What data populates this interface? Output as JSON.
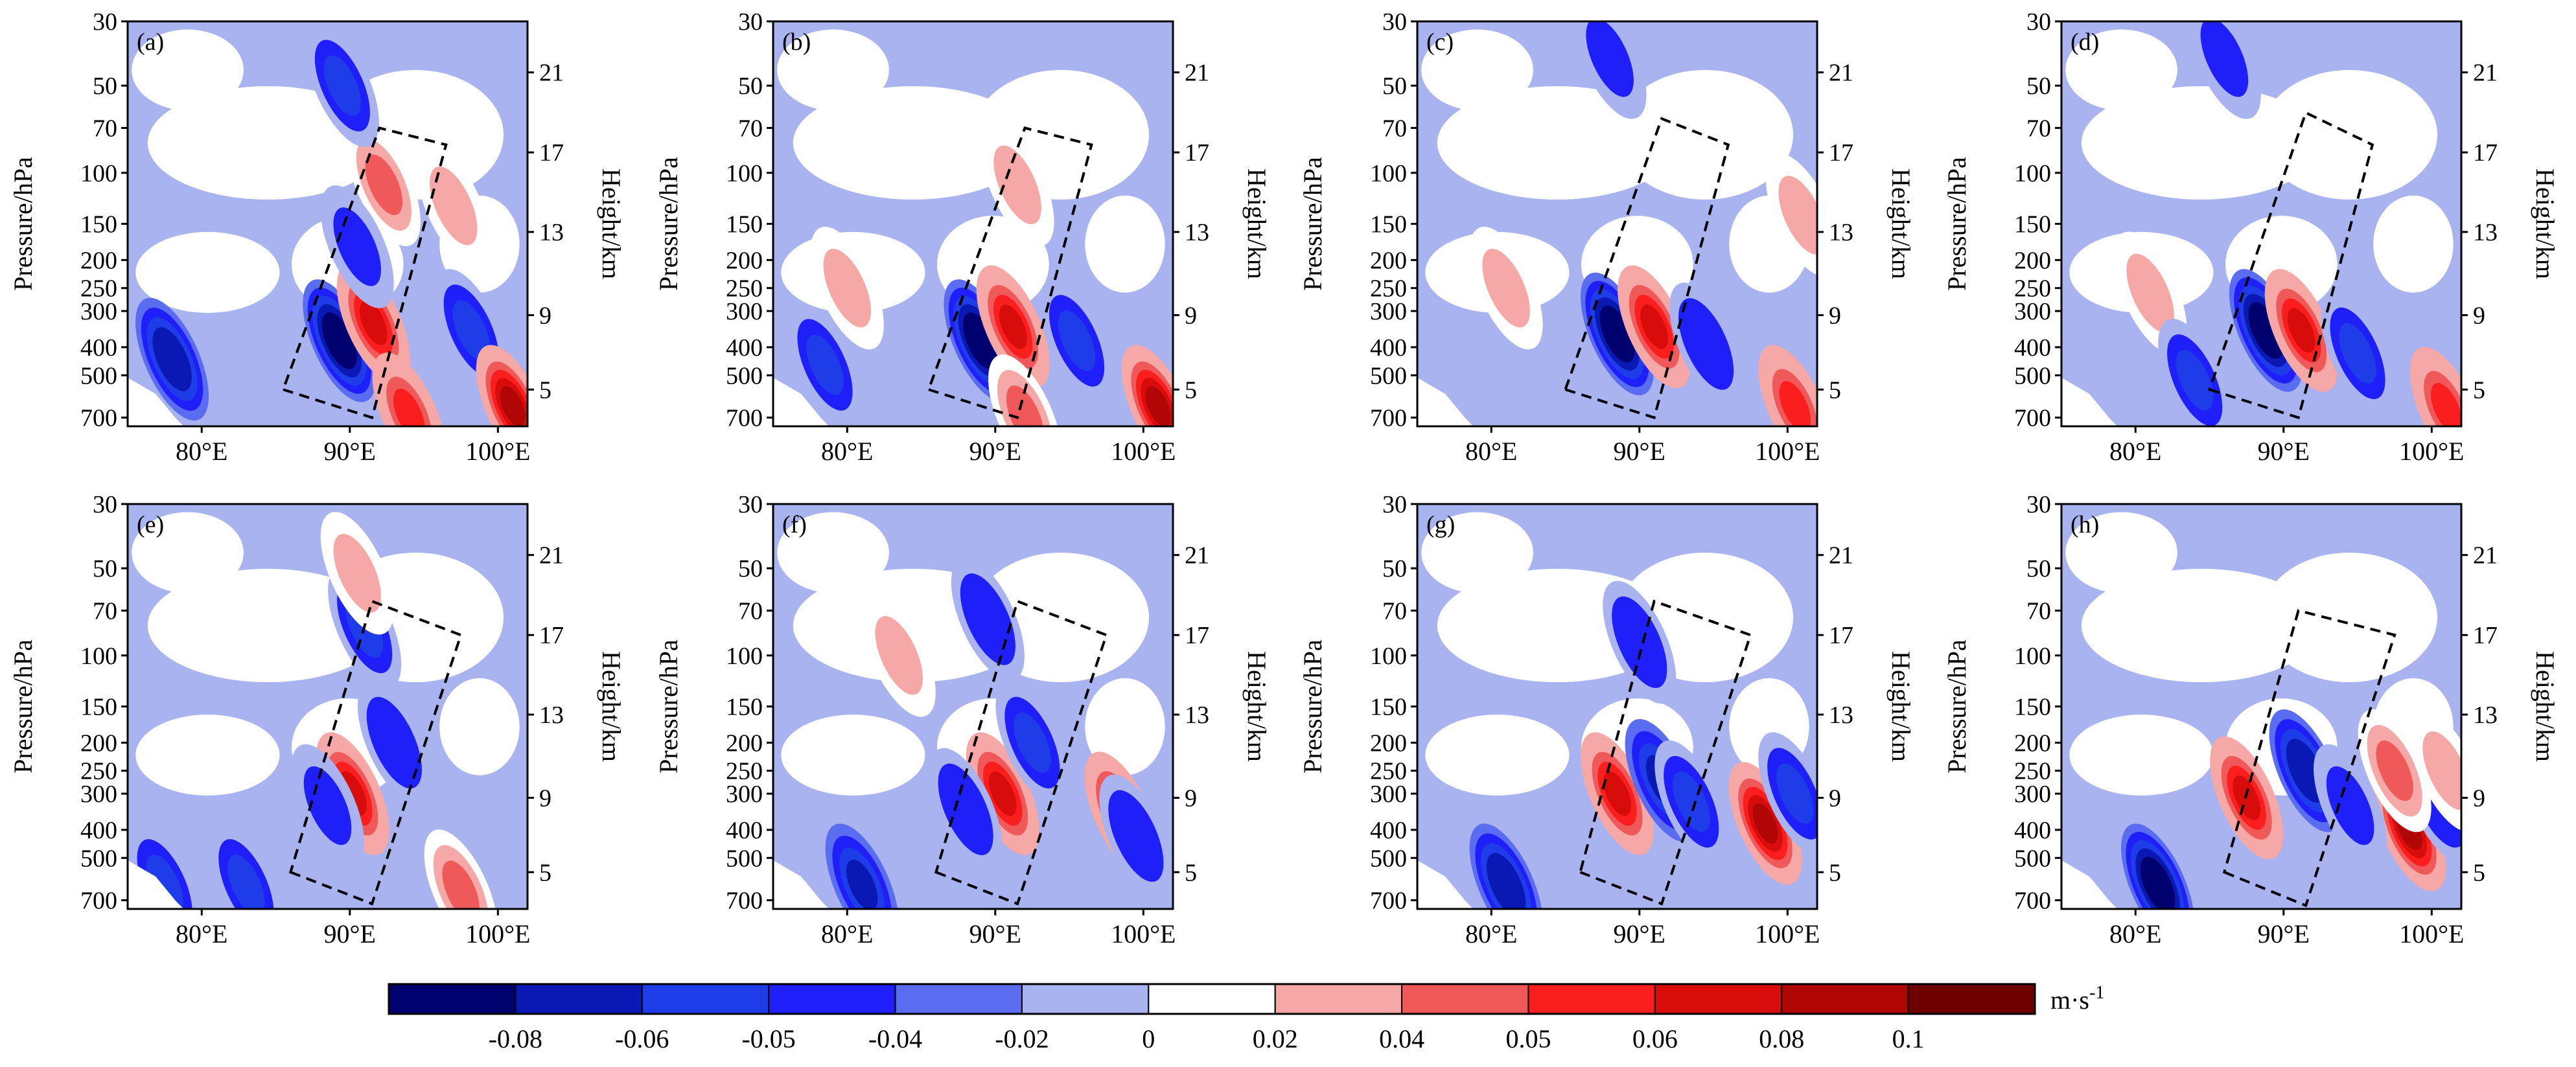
{
  "chart_data": {
    "type": "filled-contour",
    "figure_kind": "pressure-longitude cross sections (8 panels)",
    "x_axis": {
      "range": [
        75,
        102
      ],
      "ticks": [
        80,
        90,
        100
      ],
      "tick_labels": [
        "80°E",
        "90°E",
        "100°E"
      ]
    },
    "left_axis": {
      "label": "Pressure/hPa",
      "scale": "log",
      "range": [
        750,
        30
      ],
      "ticks": [
        30,
        50,
        70,
        100,
        150,
        200,
        250,
        300,
        400,
        500,
        700
      ],
      "tick_labels": [
        "30",
        "50",
        "70",
        "100",
        "150",
        "200",
        "250",
        "300",
        "400",
        "500",
        "700"
      ]
    },
    "right_axis": {
      "label": "Height/km",
      "ticks": [
        21,
        17,
        13,
        9,
        5
      ],
      "tick_labels": [
        "21",
        "17",
        "13",
        "9",
        "5"
      ],
      "tick_pressures": [
        45,
        85,
        160,
        310,
        560
      ]
    },
    "colorbar": {
      "unit": "m·s",
      "unit_exponent": "-1",
      "levels": [
        -0.08,
        -0.06,
        -0.05,
        -0.04,
        -0.02,
        0,
        0.02,
        0.04,
        0.05,
        0.06,
        0.08,
        0.1
      ],
      "level_labels": [
        "-0.08",
        "-0.06",
        "-0.05",
        "-0.04",
        "-0.02",
        "0",
        "0.02",
        "0.04",
        "0.05",
        "0.06",
        "0.08",
        "0.1"
      ],
      "colors": [
        "#00006e",
        "#0a19b4",
        "#1e3ce8",
        "#1f1ffa",
        "#5a6cf0",
        "#a9b3ef",
        "#ffffff",
        "#f6a8a6",
        "#f0595a",
        "#fb1e1e",
        "#d90c0c",
        "#b00606",
        "#6e0000"
      ]
    },
    "panels": [
      {
        "label": "(a)",
        "box_lon": [
          85.5,
          91.5,
          96.5,
          92.0
        ],
        "box_p": [
          560,
          700,
          80,
          70
        ],
        "anomalies": [
          {
            "lon": 89.3,
            "p": 380,
            "v": -0.085
          },
          {
            "lon": 91.6,
            "p": 330,
            "v": 0.07
          },
          {
            "lon": 78.0,
            "p": 440,
            "v": -0.07
          },
          {
            "lon": 98.2,
            "p": 350,
            "v": -0.05
          },
          {
            "lon": 101.0,
            "p": 640,
            "v": 0.085
          },
          {
            "lon": 92.3,
            "p": 110,
            "v": 0.05
          },
          {
            "lon": 89.5,
            "p": 50,
            "v": -0.05
          },
          {
            "lon": 94.0,
            "p": 680,
            "v": 0.06
          },
          {
            "lon": 97.0,
            "p": 130,
            "v": 0.03
          },
          {
            "lon": 90.5,
            "p": 180,
            "v": -0.04
          }
        ]
      },
      {
        "label": "(b)",
        "box_lon": [
          85.5,
          91.5,
          96.5,
          92.0
        ],
        "box_p": [
          560,
          700,
          80,
          70
        ],
        "anomalies": [
          {
            "lon": 89.0,
            "p": 380,
            "v": -0.085
          },
          {
            "lon": 91.2,
            "p": 340,
            "v": 0.07
          },
          {
            "lon": 78.5,
            "p": 460,
            "v": -0.05
          },
          {
            "lon": 95.5,
            "p": 380,
            "v": -0.05
          },
          {
            "lon": 101.0,
            "p": 640,
            "v": 0.085
          },
          {
            "lon": 91.5,
            "p": 110,
            "v": 0.03
          },
          {
            "lon": 92.0,
            "p": 690,
            "v": 0.05
          },
          {
            "lon": 80.0,
            "p": 250,
            "v": 0.03
          }
        ]
      },
      {
        "label": "(c)",
        "box_lon": [
          85.0,
          91.0,
          96.0,
          91.5
        ],
        "box_p": [
          560,
          700,
          80,
          65
        ],
        "anomalies": [
          {
            "lon": 88.5,
            "p": 360,
            "v": -0.085
          },
          {
            "lon": 91.0,
            "p": 340,
            "v": 0.065
          },
          {
            "lon": 94.5,
            "p": 390,
            "v": -0.045
          },
          {
            "lon": 100.5,
            "p": 640,
            "v": 0.06
          },
          {
            "lon": 88.0,
            "p": 40,
            "v": -0.04
          },
          {
            "lon": 101.0,
            "p": 140,
            "v": 0.03
          },
          {
            "lon": 81.0,
            "p": 250,
            "v": 0.03
          }
        ]
      },
      {
        "label": "(d)",
        "box_lon": [
          85.0,
          91.0,
          96.0,
          91.5
        ],
        "box_p": [
          560,
          700,
          80,
          62
        ],
        "anomalies": [
          {
            "lon": 88.8,
            "p": 350,
            "v": -0.085
          },
          {
            "lon": 91.2,
            "p": 350,
            "v": 0.07
          },
          {
            "lon": 95.0,
            "p": 420,
            "v": -0.05
          },
          {
            "lon": 101.0,
            "p": 650,
            "v": 0.06
          },
          {
            "lon": 81.0,
            "p": 260,
            "v": 0.03
          },
          {
            "lon": 86.0,
            "p": 40,
            "v": -0.04
          },
          {
            "lon": 84.0,
            "p": 520,
            "v": -0.05
          }
        ]
      },
      {
        "label": "(e)",
        "box_lon": [
          86.0,
          91.5,
          97.5,
          91.5
        ],
        "box_p": [
          560,
          720,
          85,
          65
        ],
        "anomalies": [
          {
            "lon": 90.2,
            "p": 300,
            "v": 0.07
          },
          {
            "lon": 88.5,
            "p": 330,
            "v": -0.04
          },
          {
            "lon": 91.0,
            "p": 80,
            "v": -0.05
          },
          {
            "lon": 93.0,
            "p": 200,
            "v": -0.045
          },
          {
            "lon": 97.5,
            "p": 650,
            "v": 0.05
          },
          {
            "lon": 90.5,
            "p": 52,
            "v": 0.04
          },
          {
            "lon": 83.0,
            "p": 620,
            "v": -0.05
          },
          {
            "lon": 77.5,
            "p": 620,
            "v": -0.05
          }
        ]
      },
      {
        "label": "(f)",
        "box_lon": [
          86.0,
          91.5,
          97.5,
          91.5
        ],
        "box_p": [
          560,
          720,
          85,
          65
        ],
        "anomalies": [
          {
            "lon": 90.5,
            "p": 300,
            "v": 0.07
          },
          {
            "lon": 88.0,
            "p": 340,
            "v": -0.045
          },
          {
            "lon": 92.5,
            "p": 200,
            "v": -0.05
          },
          {
            "lon": 89.5,
            "p": 75,
            "v": -0.045
          },
          {
            "lon": 98.5,
            "p": 350,
            "v": 0.08
          },
          {
            "lon": 99.5,
            "p": 420,
            "v": -0.045
          },
          {
            "lon": 81.0,
            "p": 620,
            "v": -0.06
          },
          {
            "lon": 83.5,
            "p": 100,
            "v": 0.03
          }
        ]
      },
      {
        "label": "(g)",
        "box_lon": [
          86.0,
          91.5,
          97.5,
          91.0
        ],
        "box_p": [
          560,
          720,
          85,
          65
        ],
        "anomalies": [
          {
            "lon": 88.5,
            "p": 300,
            "v": 0.07
          },
          {
            "lon": 91.5,
            "p": 270,
            "v": -0.06
          },
          {
            "lon": 98.5,
            "p": 380,
            "v": 0.085
          },
          {
            "lon": 100.5,
            "p": 300,
            "v": -0.05
          },
          {
            "lon": 81.0,
            "p": 620,
            "v": -0.07
          },
          {
            "lon": 93.5,
            "p": 320,
            "v": -0.05
          },
          {
            "lon": 90.0,
            "p": 90,
            "v": -0.045
          }
        ]
      },
      {
        "label": "(h)",
        "box_lon": [
          86.0,
          91.5,
          97.5,
          91.0
        ],
        "box_p": [
          560,
          730,
          85,
          70
        ],
        "anomalies": [
          {
            "lon": 87.5,
            "p": 310,
            "v": 0.07
          },
          {
            "lon": 91.5,
            "p": 250,
            "v": -0.065
          },
          {
            "lon": 98.5,
            "p": 400,
            "v": 0.09
          },
          {
            "lon": 100.5,
            "p": 320,
            "v": -0.045
          },
          {
            "lon": 81.5,
            "p": 620,
            "v": -0.085
          },
          {
            "lon": 94.5,
            "p": 330,
            "v": -0.04
          },
          {
            "lon": 97.5,
            "p": 250,
            "v": 0.05
          },
          {
            "lon": 101.0,
            "p": 250,
            "v": 0.04
          }
        ]
      }
    ]
  }
}
